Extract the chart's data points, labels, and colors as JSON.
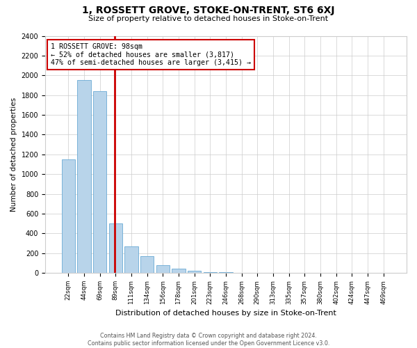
{
  "title": "1, ROSSETT GROVE, STOKE-ON-TRENT, ST6 6XJ",
  "subtitle": "Size of property relative to detached houses in Stoke-on-Trent",
  "xlabel": "Distribution of detached houses by size in Stoke-on-Trent",
  "ylabel": "Number of detached properties",
  "footer_line1": "Contains HM Land Registry data © Crown copyright and database right 2024.",
  "footer_line2": "Contains public sector information licensed under the Open Government Licence v3.0.",
  "bin_labels": [
    "22sqm",
    "44sqm",
    "69sqm",
    "89sqm",
    "111sqm",
    "134sqm",
    "156sqm",
    "178sqm",
    "201sqm",
    "223sqm",
    "246sqm",
    "268sqm",
    "290sqm",
    "313sqm",
    "335sqm",
    "357sqm",
    "380sqm",
    "402sqm",
    "424sqm",
    "447sqm",
    "469sqm"
  ],
  "bar_values": [
    1150,
    1950,
    1840,
    500,
    270,
    170,
    75,
    40,
    20,
    10,
    6,
    4,
    3,
    2,
    1,
    1,
    1,
    0,
    0,
    0,
    0
  ],
  "bar_color": "#b8d4ea",
  "bar_edge_color": "#6aaad4",
  "annotation_line1": "1 ROSSETT GROVE: 98sqm",
  "annotation_line2": "← 52% of detached houses are smaller (3,817)",
  "annotation_line3": "47% of semi-detached houses are larger (3,415) →",
  "red_line_color": "#cc0000",
  "red_line_x": 2.925,
  "ylim": [
    0,
    2400
  ],
  "yticks": [
    0,
    200,
    400,
    600,
    800,
    1000,
    1200,
    1400,
    1600,
    1800,
    2000,
    2200,
    2400
  ],
  "background_color": "#ffffff",
  "grid_color": "#cccccc"
}
